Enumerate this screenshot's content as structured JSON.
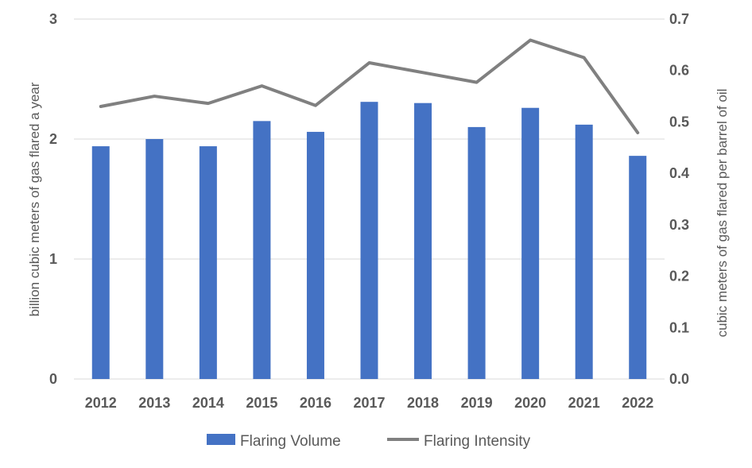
{
  "chart_data": {
    "type": "bar",
    "categories": [
      "2012",
      "2013",
      "2014",
      "2015",
      "2016",
      "2017",
      "2018",
      "2019",
      "2020",
      "2021",
      "2022"
    ],
    "series": [
      {
        "name": "Flaring Volume",
        "type": "bar",
        "axis": "left",
        "color": "#4472c4",
        "values": [
          1.94,
          2.0,
          1.94,
          2.15,
          2.06,
          2.31,
          2.3,
          2.1,
          2.26,
          2.12,
          1.86
        ]
      },
      {
        "name": "Flaring Intensity",
        "type": "line",
        "axis": "right",
        "color": "#808080",
        "values": [
          0.53,
          0.55,
          0.536,
          0.57,
          0.532,
          0.615,
          0.596,
          0.577,
          0.659,
          0.625,
          0.479
        ]
      }
    ],
    "ylabel": "billion cubic meters of gas flared a year",
    "y2label": "cubic meters of gas flared per barrel of oil",
    "ylim": [
      0,
      3
    ],
    "y2lim": [
      0,
      0.7
    ],
    "yticks": [
      "0",
      "1",
      "2",
      "3"
    ],
    "y2ticks": [
      "0.0",
      "0.1",
      "0.2",
      "0.3",
      "0.4",
      "0.5",
      "0.6",
      "0.7"
    ],
    "grid": true,
    "legend_position": "bottom"
  }
}
